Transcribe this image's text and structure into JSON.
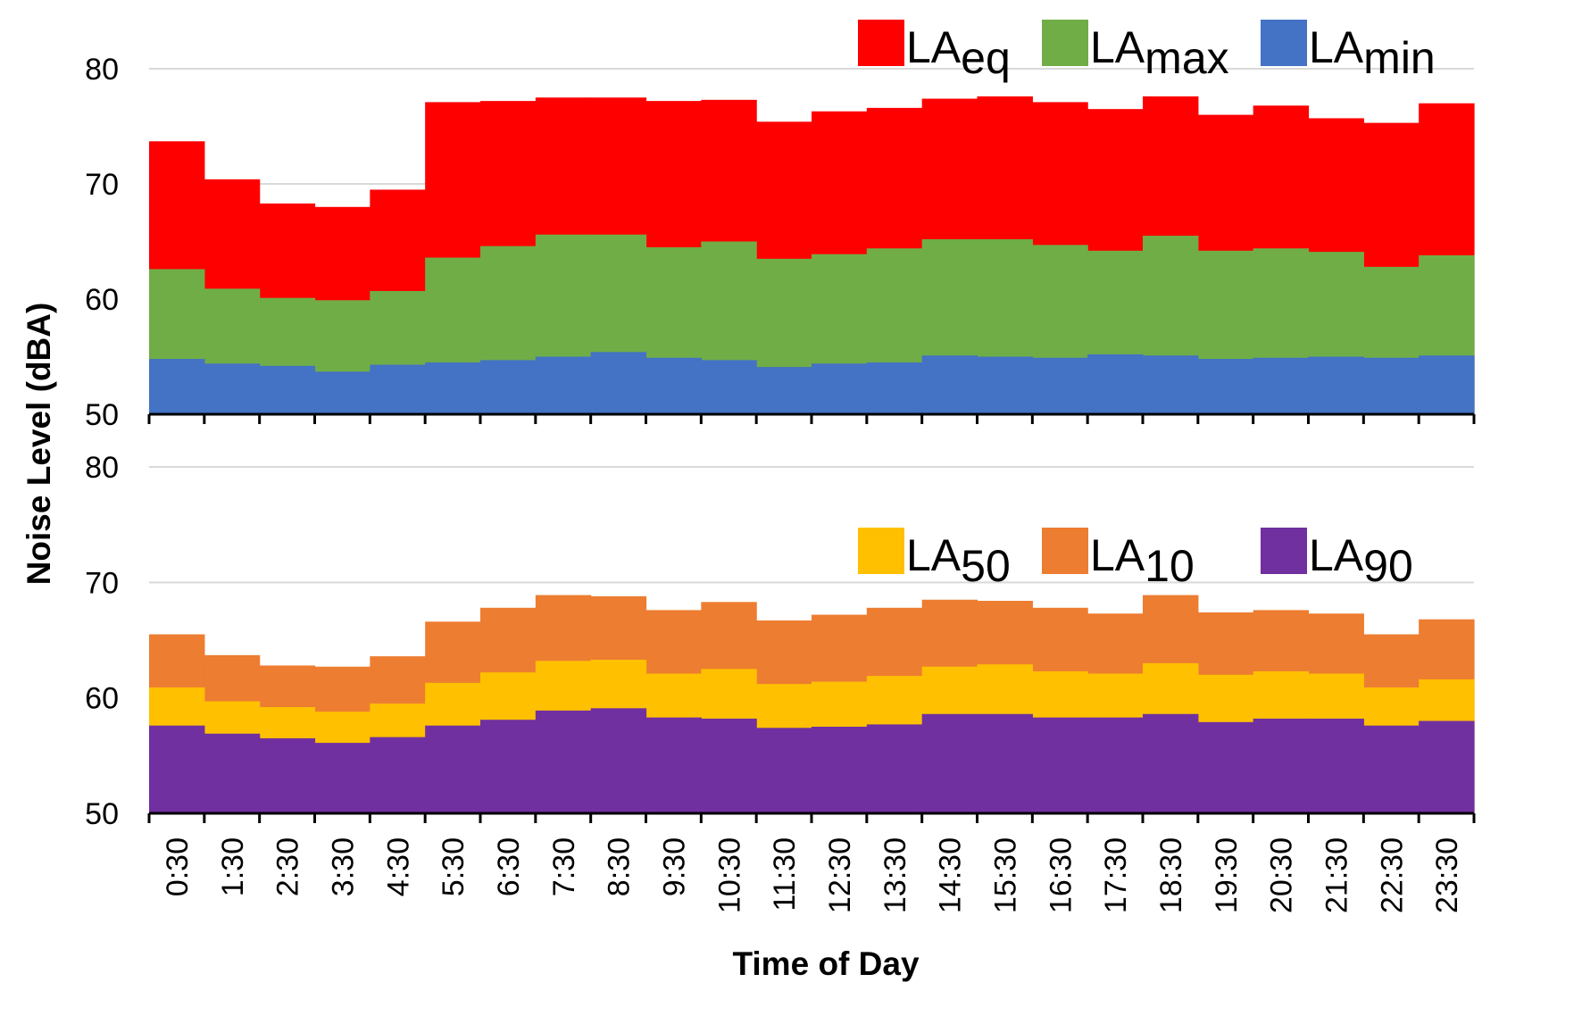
{
  "chart_data": {
    "type": "area",
    "subtype": "stepped-overlapping-area",
    "ylabel": "Noise Level (dBA)",
    "xlabel": "Time of Day",
    "categories": [
      "0:30",
      "1:30",
      "2:30",
      "3:30",
      "4:30",
      "5:30",
      "6:30",
      "7:30",
      "8:30",
      "9:30",
      "10:30",
      "11:30",
      "12:30",
      "13:30",
      "14:30",
      "15:30",
      "16:30",
      "17:30",
      "18:30",
      "19:30",
      "20:30",
      "21:30",
      "22:30",
      "23:30"
    ],
    "panels": [
      {
        "id": "top",
        "ylim": [
          50,
          80
        ],
        "yticks": [
          50,
          60,
          70,
          80
        ],
        "grid": true,
        "legend_position": "top-right",
        "legend": [
          {
            "base": "LA",
            "sub": "eq",
            "color": "#ff0000"
          },
          {
            "base": "LA",
            "sub": "max",
            "color": "#70ad47"
          },
          {
            "base": "LA",
            "sub": "min",
            "color": "#4472c4"
          }
        ],
        "series": [
          {
            "name": "LAeq",
            "color": "#ff0000",
            "values": [
              73.7,
              70.4,
              68.3,
              68.0,
              69.5,
              77.1,
              77.2,
              77.5,
              77.5,
              77.2,
              77.3,
              75.4,
              76.3,
              76.6,
              77.4,
              77.6,
              77.1,
              76.5,
              77.6,
              76.0,
              76.8,
              75.7,
              75.3,
              77.0
            ]
          },
          {
            "name": "LAmax",
            "color": "#70ad47",
            "values": [
              62.6,
              60.9,
              60.1,
              59.9,
              60.7,
              63.6,
              64.6,
              65.6,
              65.6,
              64.5,
              65.0,
              63.5,
              63.9,
              64.4,
              65.2,
              65.2,
              64.7,
              64.2,
              65.5,
              64.2,
              64.4,
              64.1,
              62.8,
              63.8
            ]
          },
          {
            "name": "LAmin",
            "color": "#4472c4",
            "values": [
              54.8,
              54.4,
              54.2,
              53.7,
              54.3,
              54.5,
              54.7,
              55.0,
              55.4,
              54.9,
              54.7,
              54.1,
              54.4,
              54.5,
              55.1,
              55.0,
              54.9,
              55.2,
              55.1,
              54.8,
              54.9,
              55.0,
              54.9,
              55.1
            ]
          }
        ]
      },
      {
        "id": "bottom",
        "ylim": [
          50,
          80
        ],
        "yticks": [
          50,
          60,
          70,
          80
        ],
        "grid": true,
        "legend_position": "upper-right",
        "legend": [
          {
            "base": "LA",
            "sub": "50",
            "color": "#ffc000"
          },
          {
            "base": "LA",
            "sub": "10",
            "color": "#ed7d31"
          },
          {
            "base": "LA",
            "sub": "90",
            "color": "#7030a0"
          }
        ],
        "series": [
          {
            "name": "LA10",
            "color": "#ed7d31",
            "values": [
              65.5,
              63.7,
              62.8,
              62.7,
              63.6,
              66.6,
              67.8,
              68.9,
              68.8,
              67.6,
              68.3,
              66.7,
              67.2,
              67.8,
              68.5,
              68.4,
              67.8,
              67.3,
              68.9,
              67.4,
              67.6,
              67.3,
              65.5,
              66.8
            ]
          },
          {
            "name": "LA50",
            "color": "#ffc000",
            "values": [
              60.9,
              59.7,
              59.2,
              58.8,
              59.5,
              61.3,
              62.2,
              63.2,
              63.3,
              62.1,
              62.5,
              61.2,
              61.4,
              61.9,
              62.7,
              62.9,
              62.3,
              62.1,
              63.0,
              62.0,
              62.3,
              62.1,
              60.9,
              61.6
            ]
          },
          {
            "name": "LA90",
            "color": "#7030a0",
            "values": [
              57.6,
              56.9,
              56.5,
              56.1,
              56.6,
              57.6,
              58.1,
              58.9,
              59.1,
              58.3,
              58.2,
              57.4,
              57.5,
              57.7,
              58.6,
              58.6,
              58.3,
              58.3,
              58.6,
              57.9,
              58.2,
              58.2,
              57.6,
              58.0
            ]
          }
        ]
      }
    ]
  }
}
